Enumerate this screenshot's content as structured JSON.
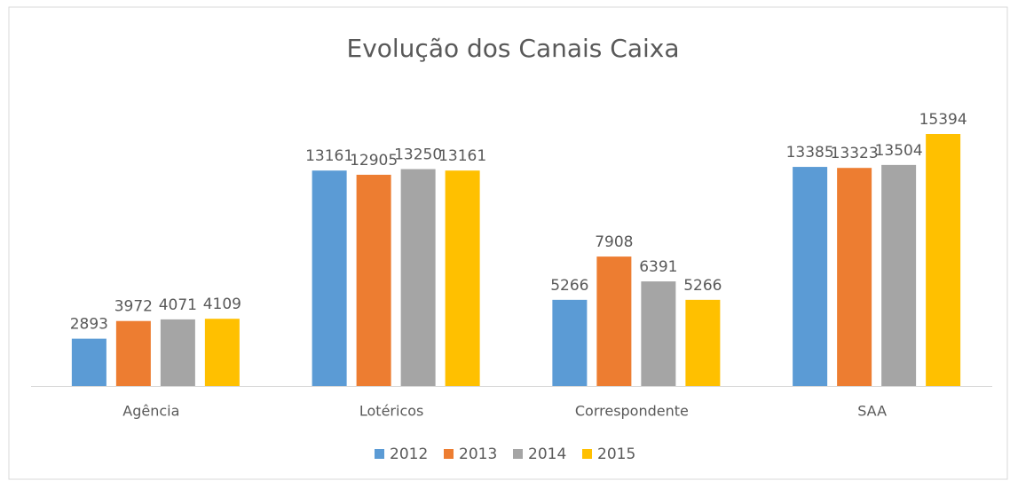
{
  "chart_data": {
    "type": "bar",
    "title": "Evolução dos Canais Caixa",
    "categories": [
      "Agência",
      "Lotéricos",
      "Correspondente",
      "SAA"
    ],
    "series": [
      {
        "name": "2012",
        "color": "#5b9bd5",
        "values": [
          2893,
          13161,
          5266,
          13385
        ]
      },
      {
        "name": "2013",
        "color": "#ed7d31",
        "values": [
          3972,
          12905,
          7908,
          13323
        ]
      },
      {
        "name": "2014",
        "color": "#a5a5a5",
        "values": [
          4071,
          13250,
          6391,
          13504
        ]
      },
      {
        "name": "2015",
        "color": "#ffc000",
        "values": [
          4109,
          13161,
          5266,
          15394
        ]
      }
    ],
    "legend": "bottom"
  }
}
